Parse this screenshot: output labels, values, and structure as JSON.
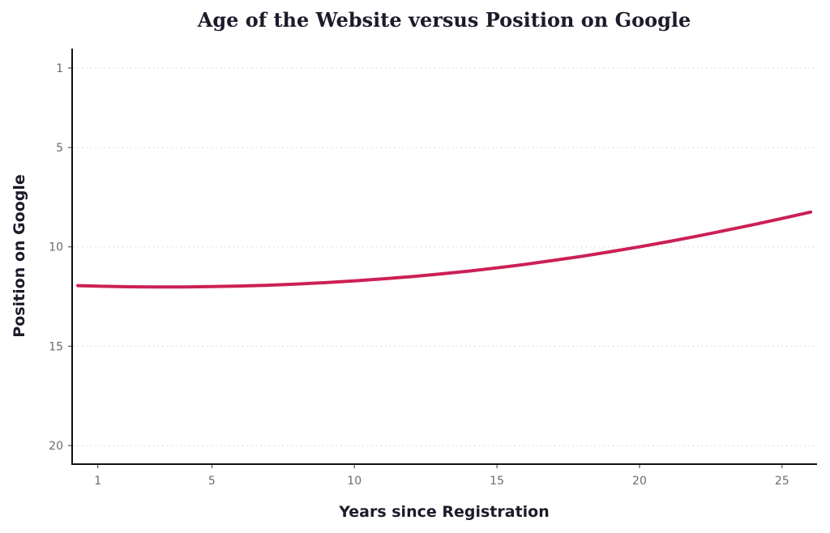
{
  "chart_data": {
    "type": "line",
    "title": "Age of the Website versus Position on Google",
    "xlabel": "Years since Registration",
    "ylabel": "Position on Google",
    "xlim": [
      0.1,
      26.0
    ],
    "ylim": [
      1,
      20
    ],
    "y_inverted": true,
    "x_ticks": [
      1,
      5,
      10,
      15,
      20,
      25
    ],
    "y_ticks": [
      1,
      5,
      10,
      15,
      20
    ],
    "grid": "horizontal dotted",
    "legend": "none",
    "series": [
      {
        "color": "#cc2055",
        "x": [
          0.3,
          1,
          2,
          3,
          4,
          5,
          6,
          7,
          8,
          9,
          10,
          11,
          12,
          13,
          14,
          15,
          16,
          17,
          18,
          19,
          20,
          21,
          22,
          23,
          24,
          25,
          26
        ],
        "y": [
          11.95,
          11.98,
          12.01,
          12.02,
          12.02,
          12.0,
          11.97,
          11.93,
          11.87,
          11.8,
          11.71,
          11.61,
          11.5,
          11.37,
          11.22,
          11.06,
          10.88,
          10.68,
          10.47,
          10.24,
          10.0,
          9.74,
          9.47,
          9.18,
          8.88,
          8.57,
          8.25
        ]
      }
    ]
  }
}
